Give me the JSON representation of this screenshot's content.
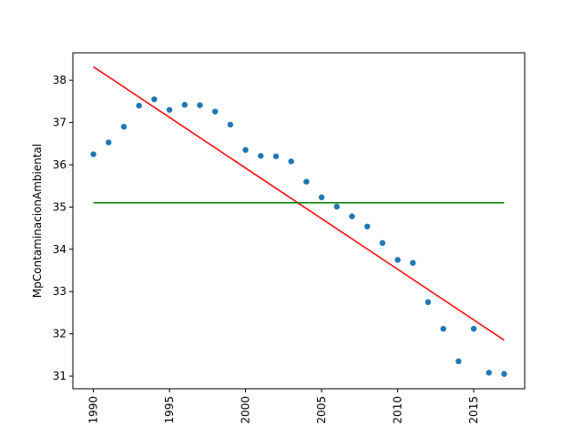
{
  "chart_data": {
    "type": "scatter",
    "xlabel": "",
    "ylabel": "MpContaminacionAmbiental",
    "xlim": [
      1988.65,
      2018.35
    ],
    "ylim": [
      30.7,
      38.65
    ],
    "x_ticks": [
      1990,
      1995,
      2000,
      2005,
      2010,
      2015
    ],
    "x_tick_labels": [
      "1990",
      "1995",
      "2000",
      "2005",
      "2010",
      "2015"
    ],
    "y_ticks": [
      31,
      32,
      33,
      34,
      35,
      36,
      37,
      38
    ],
    "y_tick_labels": [
      "31",
      "32",
      "33",
      "34",
      "35",
      "36",
      "37",
      "38"
    ],
    "grid": false,
    "x": [
      1990,
      1991,
      1992,
      1993,
      1994,
      1995,
      1996,
      1997,
      1998,
      1999,
      2000,
      2001,
      2002,
      2003,
      2004,
      2005,
      2006,
      2007,
      2008,
      2009,
      2010,
      2011,
      2012,
      2013,
      2014,
      2015,
      2016,
      2017
    ],
    "y": [
      36.25,
      36.53,
      36.9,
      37.4,
      37.55,
      37.3,
      37.42,
      37.41,
      37.26,
      36.95,
      36.35,
      36.21,
      36.2,
      36.08,
      35.6,
      35.23,
      35.01,
      34.78,
      34.54,
      34.15,
      33.75,
      33.68,
      32.75,
      32.12,
      31.35,
      32.12,
      31.08,
      31.05
    ],
    "point_color": "#1f77b4",
    "lines": [
      {
        "x": [
          1990,
          2017
        ],
        "y": [
          38.32,
          31.85
        ],
        "color": "#ff0000"
      },
      {
        "x": [
          1990,
          2017
        ],
        "y": [
          35.1,
          35.1
        ],
        "color": "#008000"
      }
    ]
  }
}
